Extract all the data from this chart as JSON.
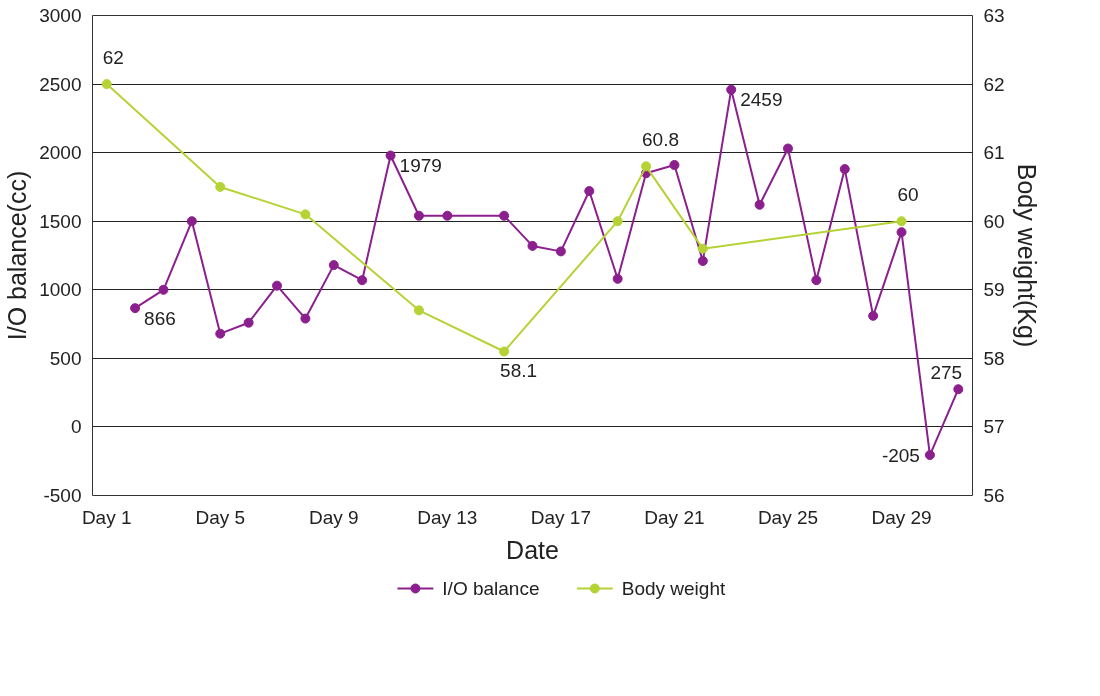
{
  "chart_data": {
    "type": "line",
    "xlabel": "Date",
    "ylabel": "I/O balance(cc)",
    "y2label": "Body weight(Kg)",
    "categories": [
      "Day 1",
      null,
      null,
      null,
      "Day 5",
      null,
      null,
      null,
      "Day 9",
      null,
      null,
      null,
      "Day 13",
      null,
      null,
      null,
      "Day 17",
      null,
      null,
      null,
      "Day 21",
      null,
      null,
      null,
      "Day 25",
      null,
      null,
      null,
      "Day 29",
      null,
      null
    ],
    "ylim": [
      -500,
      3000
    ],
    "yticks": [
      -500,
      0,
      500,
      1000,
      1500,
      2000,
      2500,
      3000
    ],
    "y2lim": [
      56,
      63
    ],
    "y2ticks": [
      56,
      57,
      58,
      59,
      60,
      61,
      62,
      63
    ],
    "grid": "y",
    "legend": "bottom",
    "marker": "circle",
    "line_style": "solid",
    "series": [
      {
        "name": "I/O balance",
        "color": "#8b1f8e",
        "values": [
          null,
          866,
          1000,
          1500,
          680,
          760,
          1030,
          790,
          1180,
          1070,
          1979,
          1540,
          1540,
          null,
          1540,
          1320,
          1280,
          1720,
          1080,
          1850,
          1910,
          1210,
          2459,
          1620,
          2030,
          1070,
          1880,
          810,
          1420,
          -205,
          275
        ],
        "value_labels": [
          null,
          "866",
          null,
          null,
          null,
          null,
          null,
          null,
          null,
          null,
          "1979",
          null,
          null,
          null,
          null,
          null,
          null,
          null,
          null,
          null,
          null,
          null,
          "2459",
          null,
          null,
          null,
          null,
          null,
          null,
          "-205",
          "275"
        ]
      },
      {
        "name": "Body weight",
        "color": "#b5d334",
        "axis": "y2",
        "values": [
          62,
          null,
          null,
          null,
          60.5,
          null,
          null,
          60.1,
          null,
          null,
          null,
          58.7,
          null,
          null,
          58.1,
          null,
          null,
          null,
          60,
          60.8,
          null,
          59.6,
          null,
          null,
          null,
          null,
          null,
          null,
          60,
          null,
          null
        ],
        "value_labels": [
          "62",
          null,
          null,
          null,
          null,
          null,
          null,
          null,
          null,
          null,
          null,
          null,
          null,
          null,
          "58.1",
          null,
          null,
          null,
          null,
          "60.8",
          null,
          null,
          null,
          null,
          null,
          null,
          null,
          null,
          "60",
          null,
          null
        ]
      }
    ]
  }
}
